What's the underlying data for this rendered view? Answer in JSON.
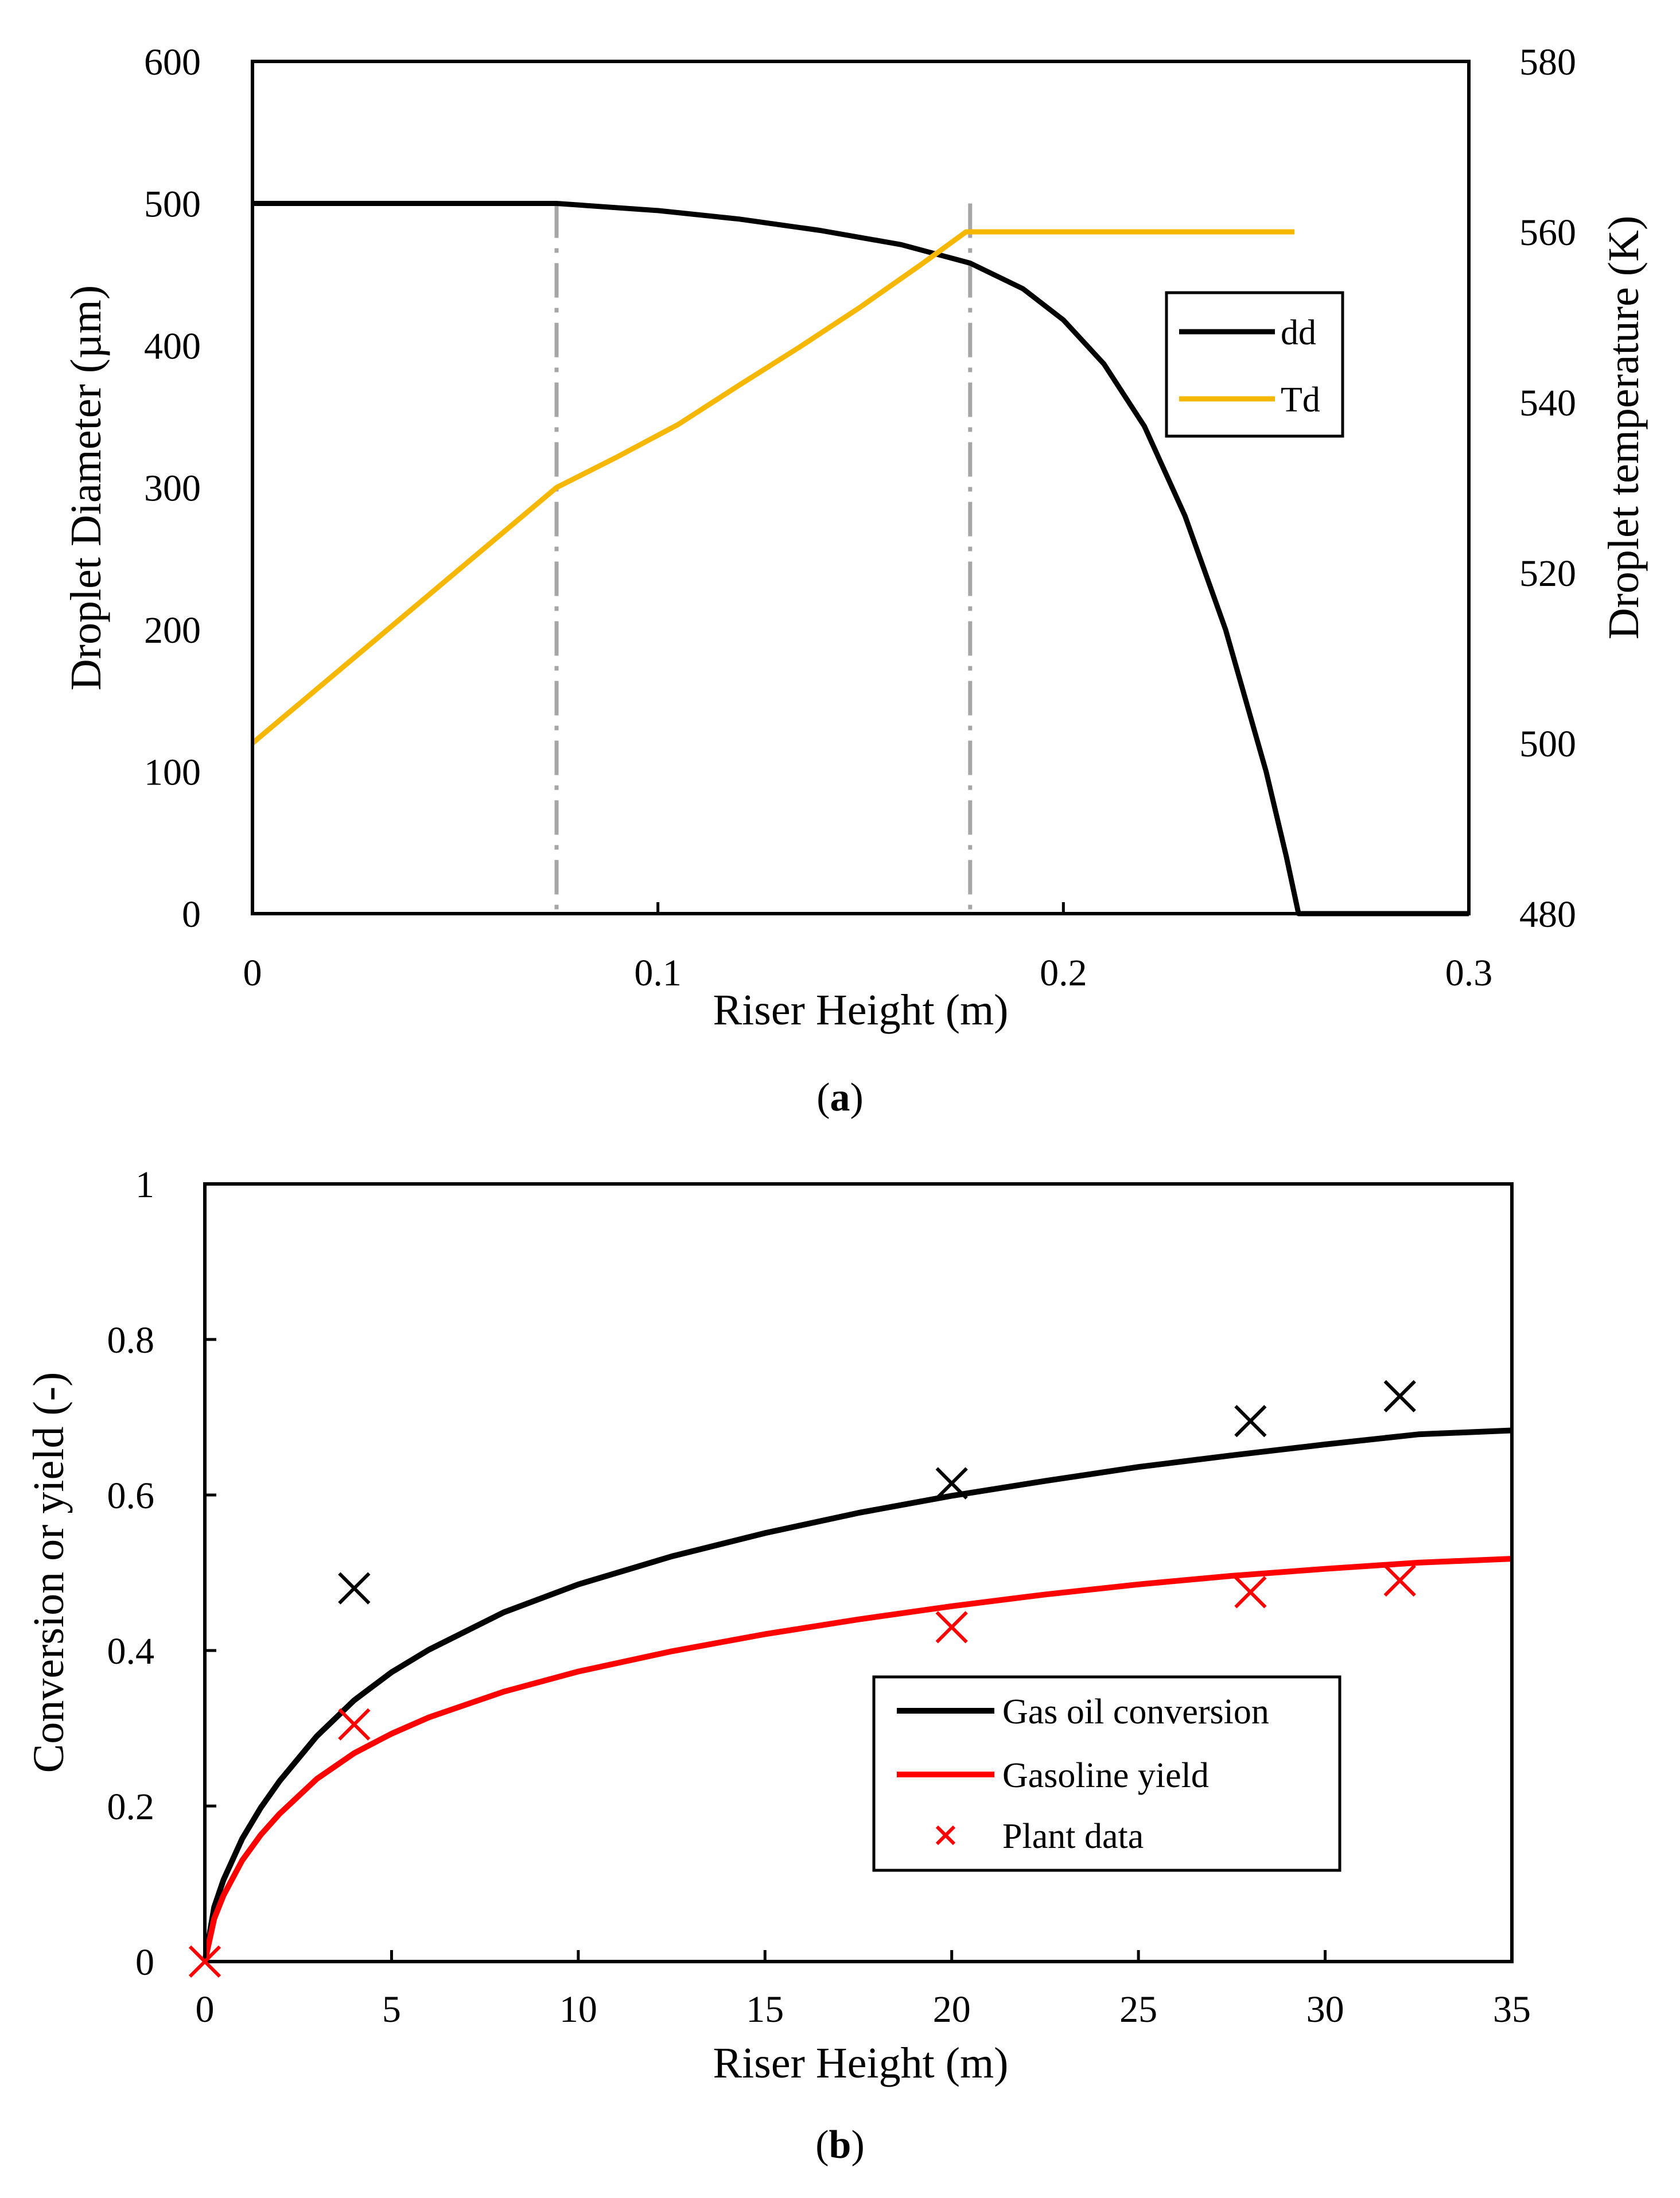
{
  "colors": {
    "black": "#000000",
    "gold": "#F5B700",
    "red": "#FF0000",
    "gray_dash": "#A6A6A6"
  },
  "chart_data": [
    {
      "type": "line",
      "caption_label": "a",
      "xlabel": "Riser Height (m)",
      "ylabel": "Droplet Diameter (µm)",
      "y2label": "Droplet temperature (K)",
      "xlim": [
        0,
        0.3
      ],
      "ylim": [
        0,
        600
      ],
      "y2lim": [
        480,
        580
      ],
      "x_ticks": [
        0,
        0.1,
        0.2,
        0.3
      ],
      "x_tick_labels": [
        "0",
        "0.1",
        "0.2",
        "0.3"
      ],
      "y_ticks": [
        0,
        100,
        200,
        300,
        400,
        500,
        600
      ],
      "y_tick_labels": [
        "0",
        "100",
        "200",
        "300",
        "400",
        "500",
        "600"
      ],
      "y2_ticks": [
        480,
        500,
        520,
        540,
        560,
        580
      ],
      "y2_tick_labels": [
        "480",
        "500",
        "520",
        "540",
        "560",
        "580"
      ],
      "legend_position": "right",
      "series": [
        {
          "name": "dd",
          "axis": "left",
          "color": "#000000",
          "x": [
            0,
            0.075,
            0.1,
            0.12,
            0.14,
            0.16,
            0.177,
            0.19,
            0.2,
            0.21,
            0.22,
            0.23,
            0.24,
            0.25,
            0.255,
            0.258,
            0.3
          ],
          "y": [
            500,
            500,
            495,
            489,
            481,
            471,
            458,
            440,
            418,
            387,
            343,
            280,
            200,
            100,
            40,
            0,
            0
          ]
        },
        {
          "name": "Td",
          "axis": "right",
          "color": "#F5B700",
          "x": [
            0,
            0.075,
            0.09,
            0.105,
            0.12,
            0.135,
            0.15,
            0.165,
            0.176,
            0.2,
            0.257
          ],
          "y": [
            500,
            530,
            533.6,
            537.4,
            542,
            546.5,
            551.2,
            556.2,
            560,
            560,
            560
          ]
        }
      ],
      "vertical_markers": [
        0.075,
        0.177
      ]
    },
    {
      "type": "line",
      "caption_label": "b",
      "xlabel": "Riser Height (m)",
      "ylabel": "Conversion or yield (-)",
      "xlim": [
        0,
        35
      ],
      "ylim": [
        0,
        1
      ],
      "x_ticks": [
        0,
        5,
        10,
        15,
        20,
        25,
        30,
        35
      ],
      "x_tick_labels": [
        "0",
        "5",
        "10",
        "15",
        "20",
        "25",
        "30",
        "35"
      ],
      "y_ticks": [
        0,
        0.2,
        0.4,
        0.6,
        0.8,
        1
      ],
      "y_tick_labels": [
        "0",
        "0.2",
        "0.4",
        "0.6",
        "0.8",
        "1"
      ],
      "legend_position": "center-right",
      "series": [
        {
          "name": "Gas oil conversion",
          "color": "#000000",
          "x": [
            0,
            0.25,
            0.5,
            1,
            1.5,
            2,
            3,
            4,
            5,
            6,
            8,
            10,
            12.5,
            15,
            17.5,
            20,
            22.5,
            25,
            27.5,
            30,
            32.5,
            35
          ],
          "y": [
            0,
            0.07,
            0.105,
            0.158,
            0.198,
            0.232,
            0.29,
            0.336,
            0.372,
            0.401,
            0.449,
            0.485,
            0.521,
            0.551,
            0.577,
            0.599,
            0.618,
            0.636,
            0.651,
            0.665,
            0.678,
            0.683
          ]
        },
        {
          "name": "Gasoline yield",
          "color": "#FF0000",
          "x": [
            0,
            0.25,
            0.5,
            1,
            1.5,
            2,
            3,
            4,
            5,
            6,
            8,
            10,
            12.5,
            15,
            17.5,
            20,
            22.5,
            25,
            27.5,
            30,
            32.5,
            35
          ],
          "y": [
            0,
            0.055,
            0.085,
            0.13,
            0.163,
            0.19,
            0.235,
            0.268,
            0.293,
            0.314,
            0.347,
            0.373,
            0.399,
            0.421,
            0.44,
            0.457,
            0.472,
            0.485,
            0.496,
            0.505,
            0.513,
            0.518
          ]
        }
      ],
      "scatter": [
        {
          "name": "Plant data",
          "color": "#000000",
          "in_legend": false,
          "x": [
            4,
            20,
            28,
            32
          ],
          "y": [
            0.48,
            0.615,
            0.695,
            0.727
          ]
        },
        {
          "name": "Plant data",
          "color": "#FF0000",
          "in_legend": true,
          "x": [
            0,
            4,
            20,
            28,
            32
          ],
          "y": [
            0,
            0.305,
            0.43,
            0.475,
            0.49
          ]
        }
      ]
    }
  ]
}
